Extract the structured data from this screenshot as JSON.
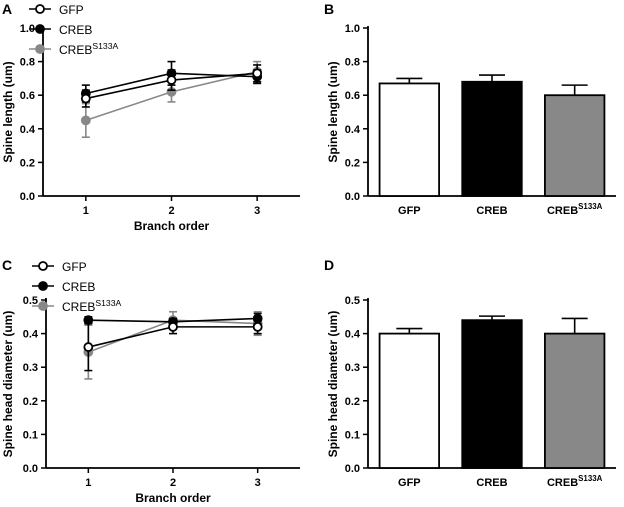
{
  "colors": {
    "gfp": "#ffffff",
    "creb": "#000000",
    "s133a": "#888888",
    "axis": "#000000"
  },
  "chart_data": [
    {
      "panel": "A",
      "type": "line",
      "xlabel": "Branch order",
      "ylabel": "Spine length (um)",
      "x": [
        1,
        2,
        3
      ],
      "xlim": [
        0.5,
        3.5
      ],
      "ylim": [
        0.0,
        1.0
      ],
      "yticks": [
        "0.0",
        "0.2",
        "0.4",
        "0.6",
        "0.8",
        "1.0"
      ],
      "xticks": [
        "1",
        "2",
        "3"
      ],
      "legend": "top-left",
      "series": [
        {
          "name": "GFP",
          "sup": "",
          "key": "gfp",
          "values": [
            0.58,
            0.69,
            0.73
          ],
          "err": [
            0.05,
            0.06,
            0.05
          ]
        },
        {
          "name": "CREB",
          "sup": "",
          "key": "creb",
          "values": [
            0.61,
            0.73,
            0.71
          ],
          "err": [
            0.05,
            0.07,
            0.04
          ]
        },
        {
          "name": "CREB",
          "sup": "S133A",
          "key": "s133a",
          "values": [
            0.45,
            0.62,
            0.74
          ],
          "err": [
            0.1,
            0.06,
            0.06
          ]
        }
      ]
    },
    {
      "panel": "B",
      "type": "bar",
      "ylabel": "Spine length (um)",
      "ylim": [
        0.0,
        1.0
      ],
      "yticks": [
        "0.0",
        "0.2",
        "0.4",
        "0.6",
        "0.8",
        "1.0"
      ],
      "categories": [
        {
          "name": "GFP",
          "sup": "",
          "key": "gfp"
        },
        {
          "name": "CREB",
          "sup": "",
          "key": "creb"
        },
        {
          "name": "CREB",
          "sup": "S133A",
          "key": "s133a"
        }
      ],
      "values": [
        0.67,
        0.68,
        0.6
      ],
      "err": [
        0.03,
        0.04,
        0.06
      ]
    },
    {
      "panel": "C",
      "type": "line",
      "xlabel": "Branch order",
      "ylabel": "Spine head diameter (um)",
      "x": [
        1,
        2,
        3
      ],
      "xlim": [
        0.5,
        3.5
      ],
      "ylim": [
        0.0,
        0.5
      ],
      "yticks": [
        "0.0",
        "0.1",
        "0.2",
        "0.3",
        "0.4",
        "0.5"
      ],
      "xticks": [
        "1",
        "2",
        "3"
      ],
      "legend": "top-left",
      "series": [
        {
          "name": "GFP",
          "sup": "",
          "key": "gfp",
          "values": [
            0.36,
            0.42,
            0.42
          ],
          "err": [
            0.07,
            0.02,
            0.02
          ]
        },
        {
          "name": "CREB",
          "sup": "",
          "key": "creb",
          "values": [
            0.44,
            0.435,
            0.445
          ],
          "err": [
            0.01,
            0.01,
            0.015
          ]
        },
        {
          "name": "CREB",
          "sup": "S133A",
          "key": "s133a",
          "values": [
            0.345,
            0.44,
            0.43
          ],
          "err": [
            0.08,
            0.025,
            0.035
          ]
        }
      ]
    },
    {
      "panel": "D",
      "type": "bar",
      "ylabel": "Spine head diameter (um)",
      "ylim": [
        0.0,
        0.5
      ],
      "yticks": [
        "0.0",
        "0.1",
        "0.2",
        "0.3",
        "0.4",
        "0.5"
      ],
      "categories": [
        {
          "name": "GFP",
          "sup": "",
          "key": "gfp"
        },
        {
          "name": "CREB",
          "sup": "",
          "key": "creb"
        },
        {
          "name": "CREB",
          "sup": "S133A",
          "key": "s133a"
        }
      ],
      "values": [
        0.4,
        0.44,
        0.4
      ],
      "err": [
        0.015,
        0.012,
        0.045
      ]
    }
  ]
}
